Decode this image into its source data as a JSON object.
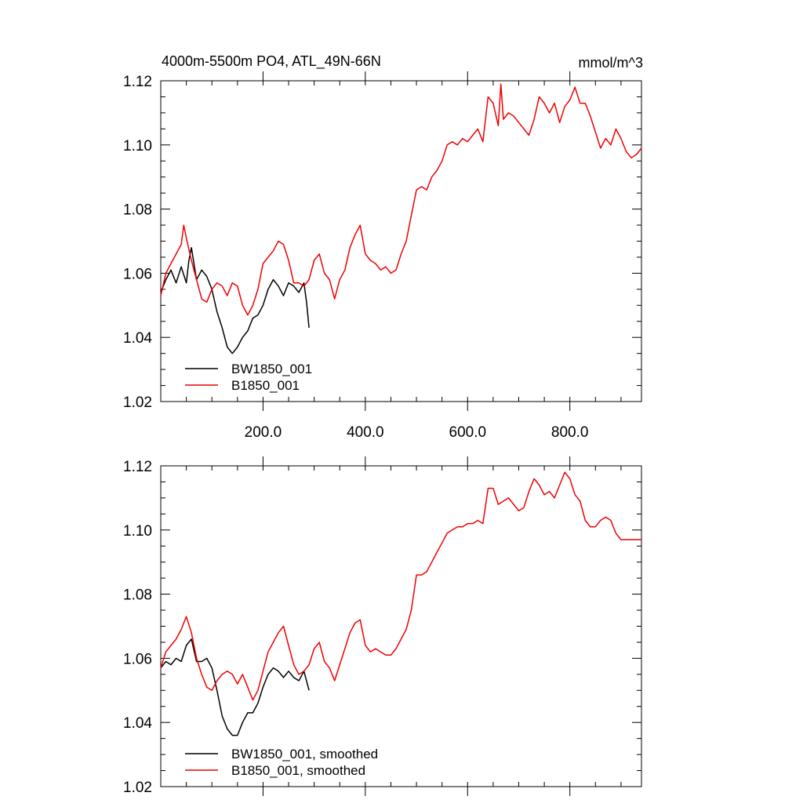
{
  "chart_data": [
    {
      "type": "line",
      "title": "4000m-5500m PO4, ATL_49N-66N",
      "units": "mmol/m^3",
      "xlim": [
        0,
        940
      ],
      "ylim": [
        1.02,
        1.12
      ],
      "xticks": [
        200,
        400,
        600,
        800
      ],
      "xtick_labels": [
        "200.0",
        "400.0",
        "600.0",
        "800.0"
      ],
      "yticks": [
        1.02,
        1.04,
        1.06,
        1.08,
        1.1,
        1.12
      ],
      "ytick_labels": [
        "1.02",
        "1.04",
        "1.06",
        "1.08",
        "1.10",
        "1.12"
      ],
      "legend_position": "bottom-left",
      "series": [
        {
          "name": "BW1850_001",
          "color": "#000000",
          "x": [
            0,
            10,
            20,
            30,
            40,
            50,
            55,
            60,
            70,
            80,
            90,
            100,
            110,
            120,
            130,
            140,
            150,
            160,
            170,
            180,
            190,
            200,
            210,
            220,
            230,
            240,
            250,
            260,
            270,
            280,
            285,
            290
          ],
          "y": [
            1.054,
            1.058,
            1.061,
            1.057,
            1.062,
            1.057,
            1.064,
            1.068,
            1.058,
            1.061,
            1.059,
            1.055,
            1.048,
            1.043,
            1.037,
            1.035,
            1.037,
            1.04,
            1.042,
            1.046,
            1.047,
            1.05,
            1.055,
            1.058,
            1.056,
            1.053,
            1.057,
            1.056,
            1.054,
            1.057,
            1.051,
            1.043
          ]
        },
        {
          "name": "B1850_001",
          "color": "#ee0000",
          "x": [
            0,
            10,
            20,
            30,
            40,
            45,
            50,
            60,
            70,
            80,
            90,
            100,
            110,
            120,
            130,
            140,
            150,
            160,
            170,
            180,
            190,
            200,
            210,
            220,
            230,
            240,
            250,
            260,
            270,
            280,
            290,
            300,
            310,
            320,
            330,
            340,
            350,
            360,
            370,
            380,
            390,
            400,
            410,
            420,
            430,
            440,
            450,
            460,
            470,
            480,
            490,
            500,
            510,
            520,
            530,
            540,
            550,
            560,
            570,
            580,
            590,
            600,
            610,
            620,
            630,
            640,
            650,
            660,
            665,
            670,
            680,
            690,
            700,
            710,
            720,
            730,
            740,
            750,
            760,
            770,
            780,
            790,
            800,
            810,
            820,
            830,
            840,
            850,
            860,
            870,
            880,
            890,
            900,
            910,
            920,
            930,
            940
          ],
          "y": [
            1.053,
            1.06,
            1.063,
            1.066,
            1.069,
            1.075,
            1.071,
            1.064,
            1.058,
            1.052,
            1.051,
            1.055,
            1.057,
            1.056,
            1.053,
            1.057,
            1.056,
            1.05,
            1.047,
            1.05,
            1.055,
            1.063,
            1.065,
            1.067,
            1.07,
            1.069,
            1.064,
            1.057,
            1.057,
            1.056,
            1.058,
            1.064,
            1.066,
            1.06,
            1.058,
            1.052,
            1.058,
            1.061,
            1.068,
            1.072,
            1.075,
            1.066,
            1.064,
            1.063,
            1.061,
            1.062,
            1.06,
            1.061,
            1.066,
            1.07,
            1.078,
            1.086,
            1.087,
            1.086,
            1.09,
            1.092,
            1.095,
            1.1,
            1.101,
            1.1,
            1.102,
            1.101,
            1.103,
            1.105,
            1.101,
            1.115,
            1.113,
            1.106,
            1.119,
            1.108,
            1.11,
            1.109,
            1.107,
            1.105,
            1.103,
            1.108,
            1.115,
            1.113,
            1.11,
            1.113,
            1.107,
            1.112,
            1.114,
            1.118,
            1.113,
            1.113,
            1.109,
            1.104,
            1.099,
            1.102,
            1.1,
            1.105,
            1.102,
            1.098,
            1.096,
            1.097,
            1.099
          ]
        }
      ]
    },
    {
      "type": "line",
      "title": "",
      "xlim": [
        0,
        940
      ],
      "ylim": [
        1.02,
        1.12
      ],
      "yticks": [
        1.02,
        1.04,
        1.06,
        1.08,
        1.1,
        1.12
      ],
      "ytick_labels": [
        "1.02",
        "1.04",
        "1.06",
        "1.08",
        "1.10",
        "1.12"
      ],
      "legend_position": "bottom-left",
      "series": [
        {
          "name": "BW1850_001, smoothed",
          "color": "#000000",
          "x": [
            0,
            10,
            20,
            30,
            40,
            50,
            60,
            70,
            80,
            90,
            100,
            110,
            120,
            130,
            140,
            150,
            160,
            170,
            180,
            190,
            200,
            210,
            220,
            230,
            240,
            250,
            260,
            270,
            280,
            290
          ],
          "y": [
            1.057,
            1.059,
            1.058,
            1.06,
            1.059,
            1.064,
            1.066,
            1.059,
            1.059,
            1.06,
            1.057,
            1.05,
            1.042,
            1.038,
            1.036,
            1.036,
            1.04,
            1.043,
            1.043,
            1.046,
            1.051,
            1.055,
            1.057,
            1.056,
            1.054,
            1.056,
            1.054,
            1.053,
            1.056,
            1.05
          ]
        },
        {
          "name": "B1850_001, smoothed",
          "color": "#ee0000",
          "x": [
            0,
            10,
            20,
            30,
            40,
            50,
            60,
            70,
            80,
            90,
            100,
            110,
            120,
            130,
            140,
            150,
            160,
            170,
            180,
            190,
            200,
            210,
            220,
            230,
            240,
            250,
            260,
            270,
            280,
            290,
            300,
            310,
            320,
            330,
            340,
            350,
            360,
            370,
            380,
            390,
            400,
            410,
            420,
            430,
            440,
            450,
            460,
            470,
            480,
            490,
            500,
            510,
            520,
            530,
            540,
            550,
            560,
            570,
            580,
            590,
            600,
            610,
            620,
            630,
            640,
            650,
            660,
            670,
            680,
            690,
            700,
            710,
            720,
            730,
            740,
            750,
            760,
            770,
            780,
            790,
            800,
            810,
            820,
            830,
            840,
            850,
            860,
            870,
            880,
            890,
            900,
            910,
            920,
            930,
            940
          ],
          "y": [
            1.057,
            1.062,
            1.064,
            1.066,
            1.069,
            1.073,
            1.068,
            1.06,
            1.055,
            1.051,
            1.05,
            1.053,
            1.055,
            1.056,
            1.055,
            1.052,
            1.055,
            1.051,
            1.047,
            1.05,
            1.056,
            1.062,
            1.065,
            1.068,
            1.07,
            1.064,
            1.058,
            1.055,
            1.056,
            1.058,
            1.063,
            1.065,
            1.059,
            1.057,
            1.053,
            1.058,
            1.063,
            1.068,
            1.071,
            1.072,
            1.064,
            1.062,
            1.063,
            1.062,
            1.061,
            1.061,
            1.063,
            1.066,
            1.069,
            1.075,
            1.086,
            1.086,
            1.087,
            1.09,
            1.093,
            1.096,
            1.099,
            1.1,
            1.101,
            1.101,
            1.102,
            1.102,
            1.103,
            1.102,
            1.113,
            1.113,
            1.108,
            1.109,
            1.11,
            1.108,
            1.106,
            1.107,
            1.112,
            1.116,
            1.114,
            1.111,
            1.112,
            1.11,
            1.114,
            1.118,
            1.116,
            1.111,
            1.109,
            1.103,
            1.101,
            1.101,
            1.103,
            1.104,
            1.103,
            1.099,
            1.097,
            1.097,
            1.097,
            1.097,
            1.097
          ]
        }
      ]
    }
  ]
}
